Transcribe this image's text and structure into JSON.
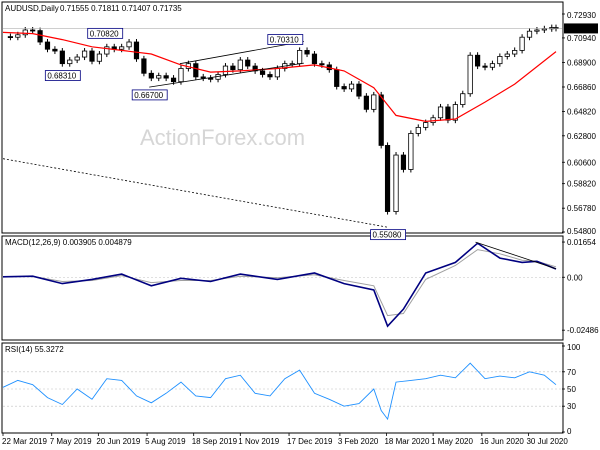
{
  "chart_data": [
    {
      "type": "candlestick",
      "title": "AUDUSD,Daily",
      "ohlc": {
        "open": "0.71555",
        "high": "0.71811",
        "low": "0.71407",
        "close": "0.71735"
      },
      "last_price_label": "0.71735",
      "watermark": "ActionForex.com",
      "ylim": [
        0.548,
        0.7293
      ],
      "y_ticks": [
        "0.72930",
        "0.70940",
        "0.68900",
        "0.66860",
        "0.64820",
        "0.62800",
        "0.60600",
        "0.58820",
        "0.56780",
        "0.54800"
      ],
      "y_tick_values": [
        0.7293,
        0.7094,
        0.689,
        0.6686,
        0.6482,
        0.628,
        0.606,
        0.5882,
        0.5678,
        0.548
      ],
      "annotations": [
        {
          "text": "0.70820",
          "x": "2019-06-26",
          "y": 0.7082
        },
        {
          "text": "0.68310",
          "x": "2019-05-17",
          "y": 0.6831
        },
        {
          "text": "0.66700",
          "x": "2019-08-07",
          "y": 0.667
        },
        {
          "text": "0.70310",
          "x": "2019-12-13",
          "y": 0.7031
        },
        {
          "text": "0.55080",
          "x": "2020-03-19",
          "y": 0.5508
        }
      ],
      "close_series": [
        [
          "2019-03-22",
          0.7105
        ],
        [
          "2019-03-29",
          0.71
        ],
        [
          "2019-04-05",
          0.712
        ],
        [
          "2019-04-12",
          0.716
        ],
        [
          "2019-04-19",
          0.7155
        ],
        [
          "2019-04-26",
          0.706
        ],
        [
          "2019-05-03",
          0.7
        ],
        [
          "2019-05-10",
          0.6985
        ],
        [
          "2019-05-17",
          0.688
        ],
        [
          "2019-05-24",
          0.691
        ],
        [
          "2019-05-31",
          0.6935
        ],
        [
          "2019-06-07",
          0.6985
        ],
        [
          "2019-06-14",
          0.69
        ],
        [
          "2019-06-21",
          0.696
        ],
        [
          "2019-06-28",
          0.702
        ],
        [
          "2019-07-05",
          0.7
        ],
        [
          "2019-07-12",
          0.702
        ],
        [
          "2019-07-19",
          0.706
        ],
        [
          "2019-07-26",
          0.692
        ],
        [
          "2019-08-02",
          0.68
        ],
        [
          "2019-08-09",
          0.676
        ],
        [
          "2019-08-16",
          0.678
        ],
        [
          "2019-08-23",
          0.676
        ],
        [
          "2019-08-30",
          0.673
        ],
        [
          "2019-09-06",
          0.684
        ],
        [
          "2019-09-13",
          0.688
        ],
        [
          "2019-09-20",
          0.677
        ],
        [
          "2019-09-27",
          0.676
        ],
        [
          "2019-10-04",
          0.675
        ],
        [
          "2019-10-11",
          0.679
        ],
        [
          "2019-10-18",
          0.686
        ],
        [
          "2019-10-25",
          0.683
        ],
        [
          "2019-11-01",
          0.691
        ],
        [
          "2019-11-08",
          0.686
        ],
        [
          "2019-11-15",
          0.682
        ],
        [
          "2019-11-22",
          0.679
        ],
        [
          "2019-11-29",
          0.677
        ],
        [
          "2019-12-06",
          0.684
        ],
        [
          "2019-12-13",
          0.688
        ],
        [
          "2019-12-20",
          0.688
        ],
        [
          "2019-12-27",
          0.699
        ],
        [
          "2020-01-03",
          0.696
        ],
        [
          "2020-01-10",
          0.688
        ],
        [
          "2020-01-17",
          0.687
        ],
        [
          "2020-01-24",
          0.683
        ],
        [
          "2020-01-31",
          0.669
        ],
        [
          "2020-02-07",
          0.667
        ],
        [
          "2020-02-14",
          0.671
        ],
        [
          "2020-02-21",
          0.661
        ],
        [
          "2020-02-28",
          0.65
        ],
        [
          "2020-03-06",
          0.662
        ],
        [
          "2020-03-13",
          0.62
        ],
        [
          "2020-03-19",
          0.565
        ],
        [
          "2020-03-27",
          0.612
        ],
        [
          "2020-04-03",
          0.6
        ],
        [
          "2020-04-10",
          0.63
        ],
        [
          "2020-04-17",
          0.635
        ],
        [
          "2020-04-24",
          0.639
        ],
        [
          "2020-05-01",
          0.643
        ],
        [
          "2020-05-08",
          0.652
        ],
        [
          "2020-05-15",
          0.641
        ],
        [
          "2020-05-22",
          0.654
        ],
        [
          "2020-05-29",
          0.663
        ],
        [
          "2020-06-05",
          0.695
        ],
        [
          "2020-06-12",
          0.686
        ],
        [
          "2020-06-19",
          0.685
        ],
        [
          "2020-06-26",
          0.688
        ],
        [
          "2020-07-03",
          0.694
        ],
        [
          "2020-07-10",
          0.696
        ],
        [
          "2020-07-17",
          0.699
        ],
        [
          "2020-07-24",
          0.71
        ],
        [
          "2020-07-31",
          0.715
        ],
        [
          "2020-08-07",
          0.716
        ],
        [
          "2020-08-14",
          0.717
        ],
        [
          "2020-08-21",
          0.718
        ],
        [
          "2020-08-25",
          0.7173
        ]
      ],
      "moving_average": [
        [
          "2019-03-22",
          0.714
        ],
        [
          "2019-04-19",
          0.713
        ],
        [
          "2019-05-17",
          0.708
        ],
        [
          "2019-06-14",
          0.702
        ],
        [
          "2019-07-12",
          0.699
        ],
        [
          "2019-08-09",
          0.696
        ],
        [
          "2019-09-06",
          0.687
        ],
        [
          "2019-10-04",
          0.681
        ],
        [
          "2019-11-01",
          0.682
        ],
        [
          "2019-12-06",
          0.684
        ],
        [
          "2020-01-10",
          0.687
        ],
        [
          "2020-02-07",
          0.682
        ],
        [
          "2020-03-06",
          0.668
        ],
        [
          "2020-03-27",
          0.645
        ],
        [
          "2020-04-24",
          0.64
        ],
        [
          "2020-05-22",
          0.642
        ],
        [
          "2020-06-19",
          0.656
        ],
        [
          "2020-07-17",
          0.671
        ],
        [
          "2020-08-25",
          0.698
        ]
      ],
      "channel_lines": [
        {
          "style": "solid",
          "points": [
            [
              "2019-08-07",
              0.6685
            ],
            [
              "2019-12-31",
              0.6885
            ]
          ]
        },
        {
          "style": "solid",
          "points": [
            [
              "2019-09-05",
              0.688
            ],
            [
              "2019-12-31",
              0.7065
            ]
          ]
        },
        {
          "style": "dotted",
          "points": [
            [
              "2019-03-22",
              0.609
            ],
            [
              "2020-03-19",
              0.552
            ]
          ]
        }
      ]
    },
    {
      "type": "line",
      "title": "MACD(12,26,9) 0.003905 0.004879",
      "ylim": [
        -0.029,
        0.0175
      ],
      "y_ticks": [
        "0.01654",
        "0.00",
        "-0.02486"
      ],
      "y_tick_values": [
        0.01654,
        0.0,
        -0.02486
      ],
      "series": [
        {
          "color": "#000080",
          "values": [
            [
              "2019-03-22",
              0.0002
            ],
            [
              "2019-04-19",
              0.0005
            ],
            [
              "2019-05-17",
              -0.003
            ],
            [
              "2019-06-14",
              -0.001
            ],
            [
              "2019-07-12",
              0.0015
            ],
            [
              "2019-08-09",
              -0.004
            ],
            [
              "2019-09-06",
              -0.0005
            ],
            [
              "2019-10-04",
              -0.002
            ],
            [
              "2019-11-01",
              0.0015
            ],
            [
              "2019-12-06",
              -0.001
            ],
            [
              "2020-01-10",
              0.002
            ],
            [
              "2020-02-07",
              -0.003
            ],
            [
              "2020-03-06",
              -0.006
            ],
            [
              "2020-03-19",
              -0.023
            ],
            [
              "2020-04-03",
              -0.015
            ],
            [
              "2020-04-24",
              0.002
            ],
            [
              "2020-05-22",
              0.007
            ],
            [
              "2020-06-12",
              0.016
            ],
            [
              "2020-07-03",
              0.009
            ],
            [
              "2020-07-24",
              0.007
            ],
            [
              "2020-08-07",
              0.0075
            ],
            [
              "2020-08-25",
              0.0039
            ]
          ]
        },
        {
          "color": "#a0a0a0",
          "values": [
            [
              "2019-03-22",
              0.0003
            ],
            [
              "2019-04-19",
              0.0004
            ],
            [
              "2019-05-17",
              -0.002
            ],
            [
              "2019-06-14",
              -0.0015
            ],
            [
              "2019-07-12",
              0.0008
            ],
            [
              "2019-08-09",
              -0.0025
            ],
            [
              "2019-09-06",
              -0.0015
            ],
            [
              "2019-10-04",
              -0.0015
            ],
            [
              "2019-11-01",
              0.0005
            ],
            [
              "2019-12-06",
              -0.0002
            ],
            [
              "2020-01-10",
              0.0012
            ],
            [
              "2020-02-07",
              -0.0015
            ],
            [
              "2020-03-06",
              -0.004
            ],
            [
              "2020-03-19",
              -0.018
            ],
            [
              "2020-04-03",
              -0.017
            ],
            [
              "2020-04-24",
              -0.001
            ],
            [
              "2020-05-22",
              0.0055
            ],
            [
              "2020-06-12",
              0.013
            ],
            [
              "2020-07-03",
              0.011
            ],
            [
              "2020-07-24",
              0.008
            ],
            [
              "2020-08-07",
              0.0075
            ],
            [
              "2020-08-25",
              0.0049
            ]
          ]
        }
      ],
      "trend_line": [
        [
          "2020-06-10",
          0.0165
        ],
        [
          "2020-08-25",
          0.004
        ]
      ]
    },
    {
      "type": "line",
      "title": "RSI(14) 55.3272",
      "ylim": [
        0,
        100
      ],
      "y_ticks": [
        "100",
        "70",
        "50",
        "30",
        "0"
      ],
      "y_tick_values": [
        100,
        70,
        50,
        30,
        0
      ],
      "levels": [
        70,
        50,
        30
      ],
      "series": [
        {
          "color": "#1e90ff",
          "values": [
            [
              "2019-03-22",
              52
            ],
            [
              "2019-04-05",
              60
            ],
            [
              "2019-04-19",
              55
            ],
            [
              "2019-05-03",
              40
            ],
            [
              "2019-05-17",
              32
            ],
            [
              "2019-05-31",
              50
            ],
            [
              "2019-06-14",
              38
            ],
            [
              "2019-06-28",
              62
            ],
            [
              "2019-07-12",
              60
            ],
            [
              "2019-07-26",
              42
            ],
            [
              "2019-08-09",
              34
            ],
            [
              "2019-08-23",
              45
            ],
            [
              "2019-09-06",
              58
            ],
            [
              "2019-09-20",
              42
            ],
            [
              "2019-10-04",
              40
            ],
            [
              "2019-10-18",
              62
            ],
            [
              "2019-11-01",
              66
            ],
            [
              "2019-11-15",
              45
            ],
            [
              "2019-11-29",
              42
            ],
            [
              "2019-12-13",
              62
            ],
            [
              "2019-12-27",
              72
            ],
            [
              "2020-01-10",
              45
            ],
            [
              "2020-01-24",
              38
            ],
            [
              "2020-02-07",
              30
            ],
            [
              "2020-02-21",
              33
            ],
            [
              "2020-03-06",
              50
            ],
            [
              "2020-03-13",
              25
            ],
            [
              "2020-03-19",
              15
            ],
            [
              "2020-03-27",
              58
            ],
            [
              "2020-04-10",
              60
            ],
            [
              "2020-04-24",
              62
            ],
            [
              "2020-05-08",
              66
            ],
            [
              "2020-05-22",
              63
            ],
            [
              "2020-06-05",
              80
            ],
            [
              "2020-06-19",
              62
            ],
            [
              "2020-07-03",
              65
            ],
            [
              "2020-07-17",
              63
            ],
            [
              "2020-07-31",
              70
            ],
            [
              "2020-08-14",
              66
            ],
            [
              "2020-08-25",
              55
            ]
          ]
        }
      ]
    }
  ],
  "x_axis": {
    "labels": [
      "22 Mar 2019",
      "7 May 2019",
      "20 Jun 2019",
      "5 Aug 2019",
      "18 Sep 2019",
      "1 Nov 2019",
      "17 Dec 2019",
      "3 Feb 2020",
      "18 Mar 2020",
      "1 May 2020",
      "16 Jun 2020",
      "30 Jul 2020"
    ],
    "label_dates": [
      "2019-03-22",
      "2019-05-07",
      "2019-06-20",
      "2019-08-05",
      "2019-09-18",
      "2019-11-01",
      "2019-12-17",
      "2020-02-03",
      "2020-03-18",
      "2020-05-01",
      "2020-06-16",
      "2020-07-30"
    ],
    "range": [
      "2019-03-22",
      "2020-08-25"
    ]
  },
  "colors": {
    "candle_up": "#000000",
    "candle_body_up": "#ffffff",
    "moving_average": "#ff0000",
    "channel": "#000000",
    "grid_level": "#c0c0c0",
    "text": "#000000",
    "watermark": "#d6d6d6"
  }
}
